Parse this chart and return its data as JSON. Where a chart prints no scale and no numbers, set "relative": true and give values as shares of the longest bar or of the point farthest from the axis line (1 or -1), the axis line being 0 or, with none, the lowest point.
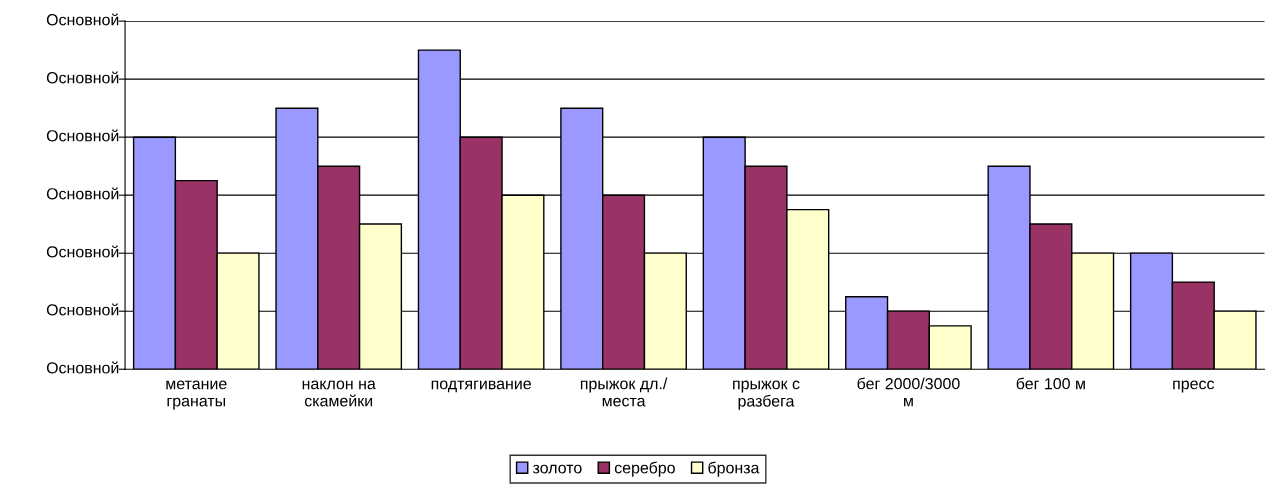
{
  "chart_data": {
    "type": "bar",
    "relative": true,
    "categories": [
      "метание\nгранаты",
      "наклон на\nскамейки",
      "подтягивание",
      "прыжок дл./\nместа",
      "прыжок с\nразбега",
      "бег 2000/3000\nм",
      "бег 100 м",
      "пресс"
    ],
    "series": [
      {
        "name": "золото",
        "color": "#9999ff",
        "values": [
          0.727,
          0.818,
          1,
          0.818,
          0.727,
          0.227,
          0.636,
          0.364
        ]
      },
      {
        "name": "серебро",
        "color": "#993366",
        "values": [
          0.591,
          0.636,
          0.727,
          0.545,
          0.636,
          0.182,
          0.455,
          0.273
        ]
      },
      {
        "name": "бронза",
        "color": "#ffffcc",
        "values": [
          0.364,
          0.455,
          0.545,
          0.364,
          0.5,
          0.136,
          0.364,
          0.182
        ]
      }
    ],
    "annotations": [
      "Основной",
      "Основной",
      "Основной",
      "Основной",
      "Основной",
      "Основной",
      "Основной"
    ],
    "grid": "y",
    "legend": "bottom"
  }
}
